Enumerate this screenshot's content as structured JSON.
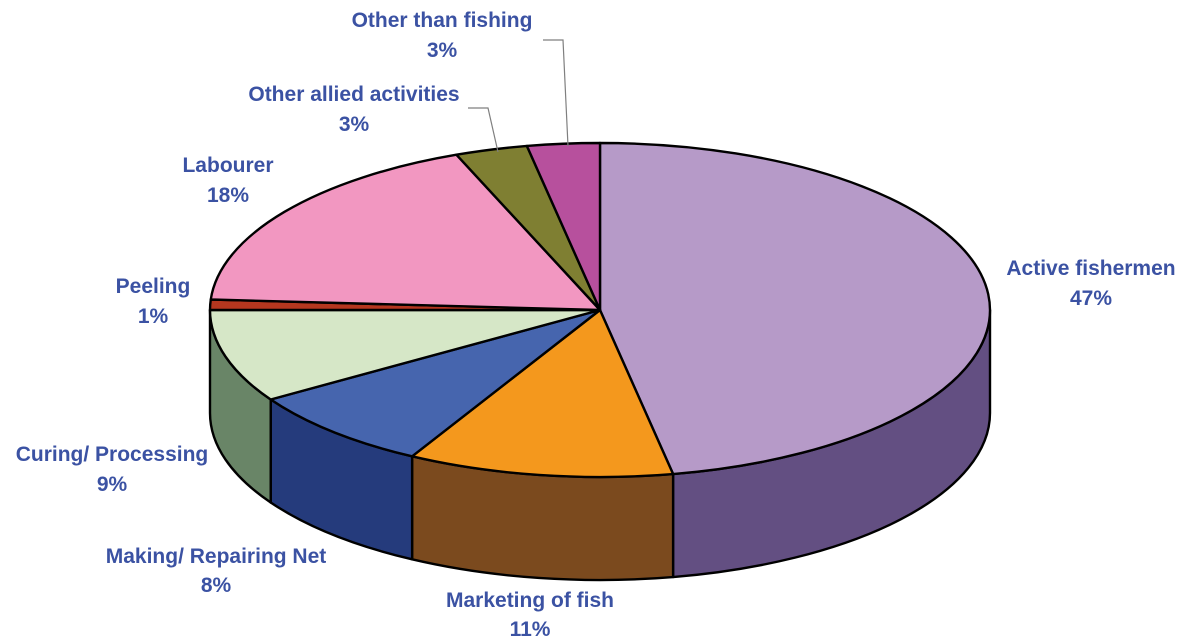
{
  "chart_data": {
    "type": "pie",
    "style": "3d",
    "title": "",
    "label_color": "#3B52A3",
    "slices": [
      {
        "name": "Active fishermen",
        "value": 47,
        "label": "47%",
        "color": "#B69AC8",
        "side_color": "#634F82"
      },
      {
        "name": "Marketing of fish",
        "value": 11,
        "label": "11%",
        "color": "#F4981D",
        "side_color": "#7B4A1E"
      },
      {
        "name": "Making/ Repairing Net",
        "value": 8,
        "label": "8%",
        "color": "#4665AE",
        "side_color": "#253B7C"
      },
      {
        "name": "Curing/ Processing",
        "value": 9,
        "label": "9%",
        "color": "#D6E7C7",
        "side_color": "#698567"
      },
      {
        "name": "Peeling",
        "value": 1,
        "label": "1%",
        "color": "#B5371F",
        "side_color": "#7A2314"
      },
      {
        "name": "Labourer",
        "value": 18,
        "label": "18%",
        "color": "#F297C1",
        "side_color": "#A95F82"
      },
      {
        "name": "Other allied activities",
        "value": 3,
        "label": "3%",
        "color": "#7F7F32",
        "side_color": "#58581F"
      },
      {
        "name": "Other than fishing",
        "value": 3,
        "label": "3%",
        "color": "#B7509D",
        "side_color": "#7F2F6A"
      }
    ]
  }
}
